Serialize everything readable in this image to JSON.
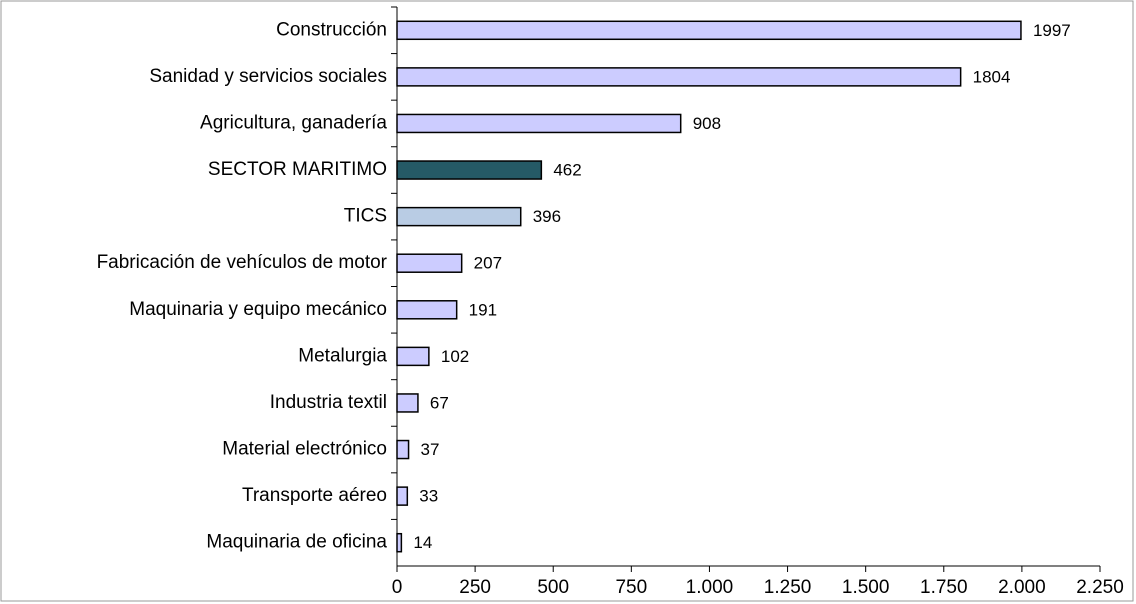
{
  "chart_data": {
    "type": "bar",
    "orientation": "horizontal",
    "categories": [
      "Construcción",
      "Sanidad y servicios sociales",
      "Agricultura, ganadería",
      "SECTOR MARITIMO",
      "TICS",
      "Fabricación de vehículos de motor",
      "Maquinaria y equipo mecánico",
      "Metalurgia",
      "Industria textil",
      "Material electrónico",
      "Transporte aéreo",
      "Maquinaria de oficina"
    ],
    "values": [
      1997,
      1804,
      908,
      462,
      396,
      207,
      191,
      102,
      67,
      37,
      33,
      14
    ],
    "colors": [
      "#ccccff",
      "#ccccff",
      "#ccccff",
      "#255a66",
      "#b9cce4",
      "#ccccff",
      "#ccccff",
      "#ccccff",
      "#ccccff",
      "#ccccff",
      "#ccccff",
      "#ccccff"
    ],
    "xlim": [
      0,
      2250
    ],
    "xticks": [
      0,
      250,
      500,
      750,
      {
        "value": 1000,
        "label": "1.000"
      },
      {
        "value": 1250,
        "label": "1.250"
      },
      {
        "value": 1500,
        "label": "1.500"
      },
      {
        "value": 1750,
        "label": "1.750"
      },
      {
        "value": 2000,
        "label": "2.000"
      },
      {
        "value": 2250,
        "label": "2.250"
      }
    ],
    "data_labels": true
  }
}
